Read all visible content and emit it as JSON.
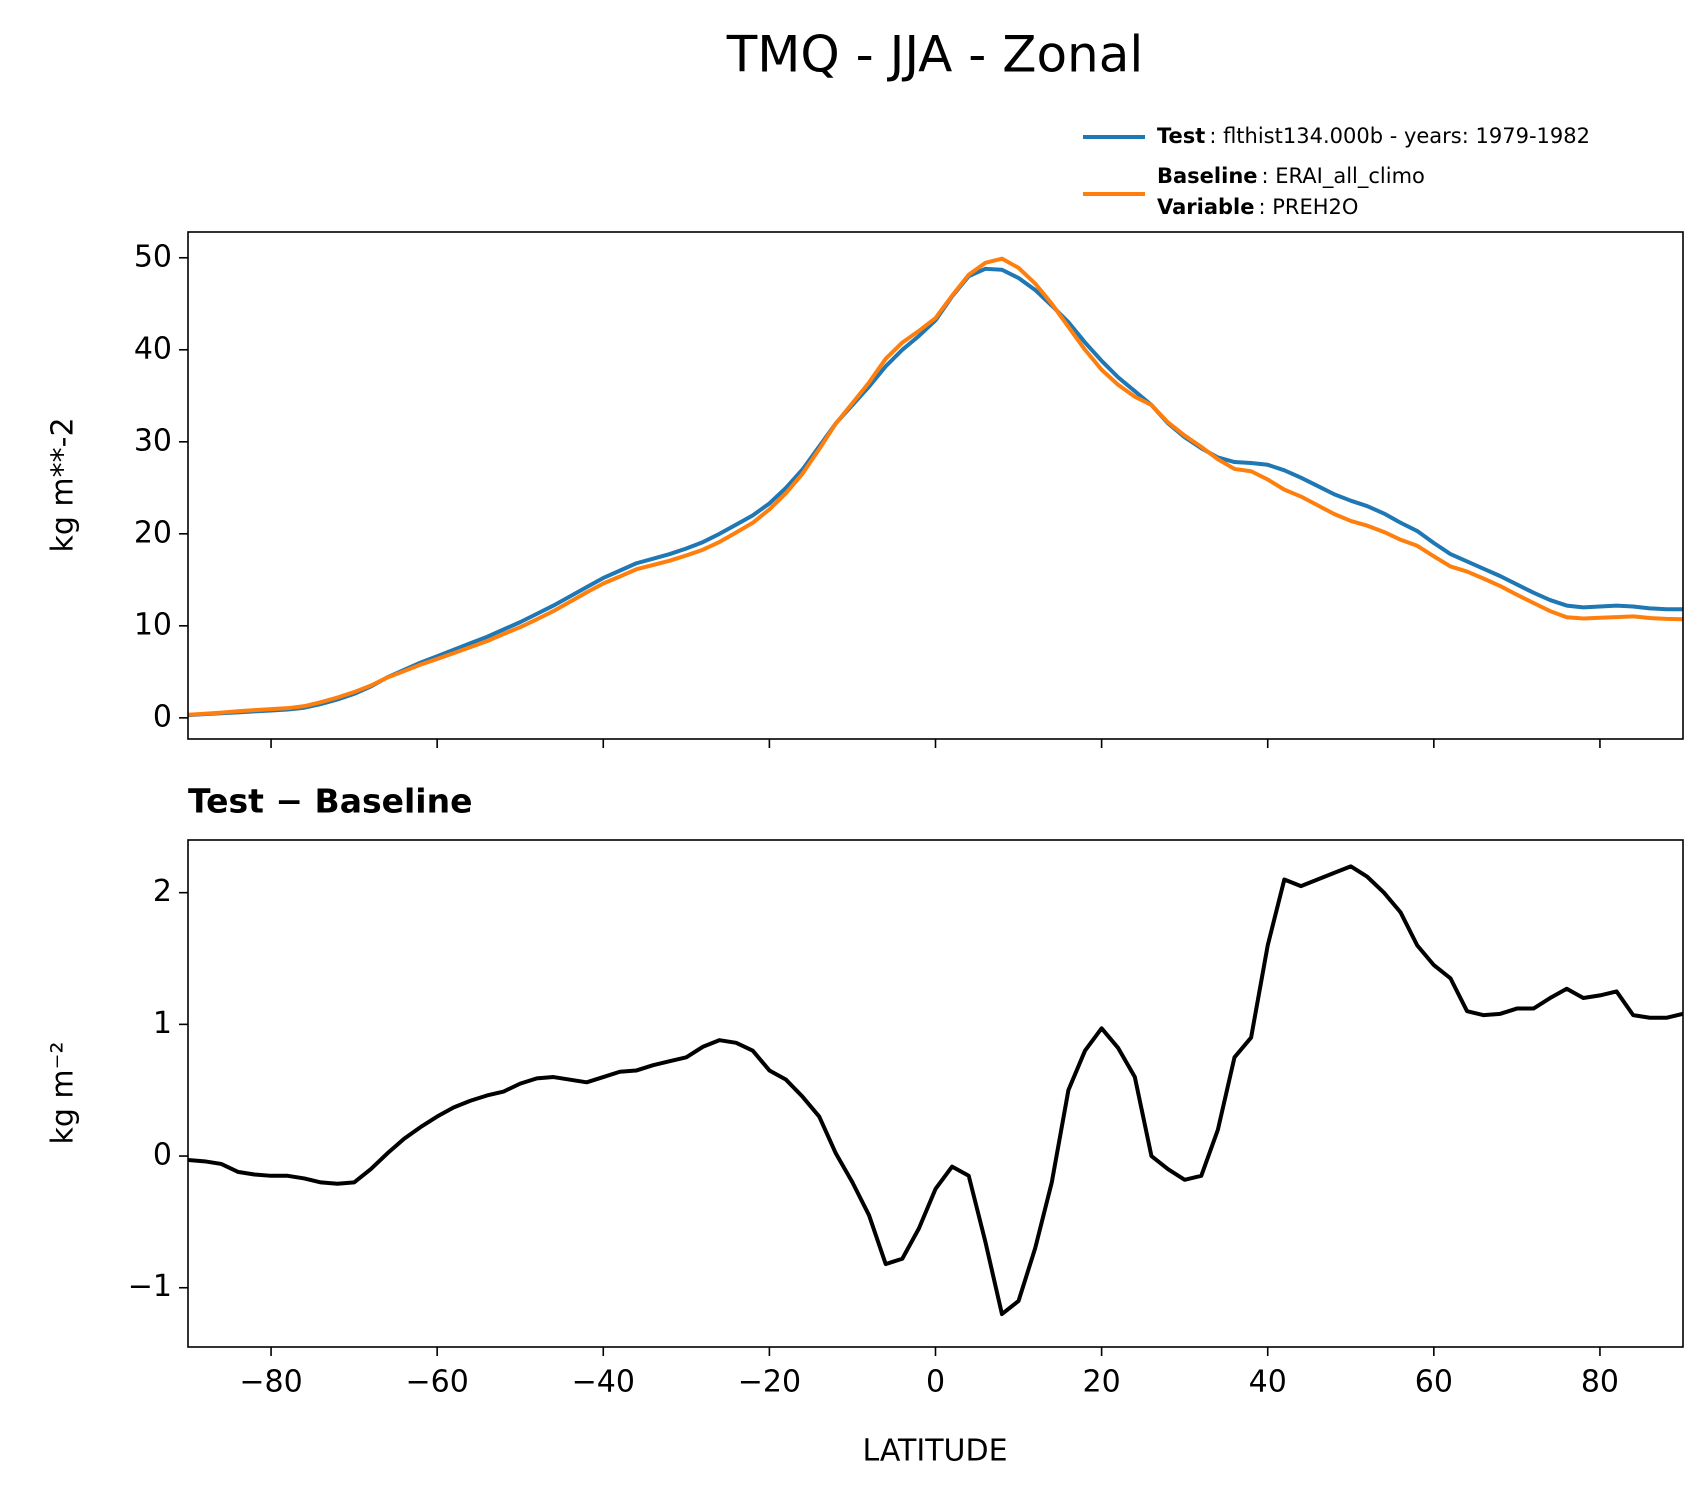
{
  "chart_data": [
    {
      "type": "line",
      "title": "TMQ - JJA - Zonal",
      "ylabel": "kg m**-2",
      "xlim": [
        -90,
        90
      ],
      "xticks": [
        -80,
        -60,
        -40,
        -20,
        0,
        20,
        40,
        60,
        80
      ],
      "xticklabels": false,
      "ylim": [
        -2.3,
        52.8
      ],
      "yticks": [
        0,
        10,
        20,
        30,
        40,
        50
      ],
      "legend": "upper right",
      "x": [
        -90,
        -88,
        -86,
        -84,
        -82,
        -80,
        -78,
        -76,
        -74,
        -72,
        -70,
        -68,
        -66,
        -64,
        -62,
        -60,
        -58,
        -56,
        -54,
        -52,
        -50,
        -48,
        -46,
        -44,
        -42,
        -40,
        -38,
        -36,
        -34,
        -32,
        -30,
        -28,
        -26,
        -24,
        -22,
        -20,
        -18,
        -16,
        -14,
        -12,
        -10,
        -8,
        -6,
        -4,
        -2,
        0,
        2,
        4,
        6,
        8,
        10,
        12,
        14,
        16,
        18,
        20,
        22,
        24,
        26,
        28,
        30,
        32,
        34,
        36,
        38,
        40,
        42,
        44,
        46,
        48,
        50,
        52,
        54,
        56,
        58,
        60,
        62,
        64,
        66,
        68,
        70,
        72,
        74,
        76,
        78,
        80,
        82,
        84,
        86,
        88,
        90
      ],
      "series": [
        {
          "name": "Test",
          "desc": ": flthist134.000b - years: 1979-1982",
          "color": "#1f77b4",
          "values": [
            0.3,
            0.4,
            0.5,
            0.6,
            0.7,
            0.8,
            0.9,
            1.1,
            1.5,
            2.0,
            2.6,
            3.4,
            4.4,
            5.2,
            6.0,
            6.7,
            7.4,
            8.1,
            8.8,
            9.6,
            10.4,
            11.3,
            12.2,
            13.2,
            14.2,
            15.2,
            16.0,
            16.8,
            17.3,
            17.8,
            18.4,
            19.1,
            20.0,
            21.0,
            22.0,
            23.3,
            25.0,
            27.0,
            29.5,
            32,
            34,
            36,
            38.2,
            40,
            41.5,
            43.2,
            45.8,
            48,
            48.8,
            48.7,
            47.8,
            46.5,
            44.8,
            43.0,
            40.8,
            38.8,
            37,
            35.5,
            34,
            32,
            30.5,
            29.3,
            28.3,
            27.8,
            27.7,
            27.5,
            26.9,
            26.1,
            25.2,
            24.3,
            23.6,
            23.0,
            22.2,
            21.2,
            20.3,
            19.0,
            17.8,
            17.0,
            16.2,
            15.4,
            14.5,
            13.6,
            12.8,
            12.2,
            12.0,
            12.1,
            12.2,
            12.1,
            11.9,
            11.8,
            11.8
          ]
        },
        {
          "name": "Baseline",
          "desc": ": ERAI_all_climo",
          "extra_name": "Variable",
          "extra_desc": ": PREH2O",
          "color": "#ff7f0e",
          "values": [
            0.33,
            0.44,
            0.56,
            0.72,
            0.84,
            0.95,
            1.05,
            1.27,
            1.7,
            2.21,
            2.8,
            3.5,
            4.38,
            5.07,
            5.78,
            6.4,
            7.03,
            7.68,
            8.34,
            9.11,
            9.85,
            10.71,
            11.6,
            12.62,
            13.64,
            14.6,
            15.36,
            16.15,
            16.61,
            17.08,
            17.65,
            18.27,
            19.12,
            20.14,
            21.2,
            22.65,
            24.42,
            26.55,
            29.2,
            31.98,
            34.2,
            36.45,
            39.02,
            40.78,
            42.05,
            43.45,
            45.88,
            48.15,
            49.45,
            49.9,
            48.9,
            47.2,
            45.0,
            42.5,
            40.0,
            37.83,
            36.18,
            34.9,
            34.0,
            32.1,
            30.68,
            29.45,
            28.1,
            27.05,
            26.8,
            25.9,
            24.8,
            24.05,
            23.1,
            22.15,
            21.4,
            20.88,
            20.2,
            19.35,
            18.7,
            17.55,
            16.45,
            15.9,
            15.13,
            14.32,
            13.38,
            12.48,
            11.6,
            10.93,
            10.8,
            10.88,
            10.95,
            11.03,
            10.85,
            10.75,
            10.72
          ]
        }
      ]
    },
    {
      "type": "line",
      "title": "Test − Baseline",
      "ylabel": "kg m⁻²",
      "xlabel": "LATITUDE",
      "xlim": [
        -90,
        90
      ],
      "xticks": [
        {
          "value": -80,
          "label": "−80"
        },
        {
          "value": -60,
          "label": "−60"
        },
        {
          "value": -40,
          "label": "−40"
        },
        {
          "value": -20,
          "label": "−20"
        },
        0,
        20,
        40,
        60,
        80
      ],
      "xticklabels": true,
      "ylim": [
        -1.45,
        2.4
      ],
      "yticks": [
        {
          "value": -1,
          "label": "−1"
        },
        0,
        1,
        2
      ],
      "x": [
        -90,
        -88,
        -86,
        -84,
        -82,
        -80,
        -78,
        -76,
        -74,
        -72,
        -70,
        -68,
        -66,
        -64,
        -62,
        -60,
        -58,
        -56,
        -54,
        -52,
        -50,
        -48,
        -46,
        -44,
        -42,
        -40,
        -38,
        -36,
        -34,
        -32,
        -30,
        -28,
        -26,
        -24,
        -22,
        -20,
        -18,
        -16,
        -14,
        -12,
        -10,
        -8,
        -6,
        -4,
        -2,
        0,
        2,
        4,
        6,
        8,
        10,
        12,
        14,
        16,
        18,
        20,
        22,
        24,
        26,
        28,
        30,
        32,
        34,
        36,
        38,
        40,
        42,
        44,
        46,
        48,
        50,
        52,
        54,
        56,
        58,
        60,
        62,
        64,
        66,
        68,
        70,
        72,
        74,
        76,
        78,
        80,
        82,
        84,
        86,
        88,
        90
      ],
      "series": [
        {
          "color": "#000000",
          "values": [
            -0.03,
            -0.04,
            -0.06,
            -0.12,
            -0.14,
            -0.15,
            -0.15,
            -0.17,
            -0.2,
            -0.21,
            -0.2,
            -0.1,
            0.02,
            0.13,
            0.22,
            0.3,
            0.37,
            0.42,
            0.46,
            0.49,
            0.55,
            0.59,
            0.6,
            0.58,
            0.56,
            0.6,
            0.64,
            0.65,
            0.69,
            0.72,
            0.75,
            0.83,
            0.88,
            0.86,
            0.8,
            0.65,
            0.58,
            0.45,
            0.3,
            0.02,
            -0.2,
            -0.45,
            -0.82,
            -0.78,
            -0.55,
            -0.25,
            -0.08,
            -0.15,
            -0.65,
            -1.2,
            -1.1,
            -0.7,
            -0.2,
            0.5,
            0.8,
            0.97,
            0.82,
            0.6,
            0.0,
            -0.1,
            -0.18,
            -0.15,
            0.2,
            0.75,
            0.9,
            1.6,
            2.1,
            2.05,
            2.1,
            2.15,
            2.2,
            2.12,
            2.0,
            1.85,
            1.6,
            1.45,
            1.35,
            1.1,
            1.07,
            1.08,
            1.12,
            1.12,
            1.2,
            1.27,
            1.2,
            1.22,
            1.25,
            1.07,
            1.05,
            1.05,
            1.08
          ]
        }
      ]
    }
  ]
}
